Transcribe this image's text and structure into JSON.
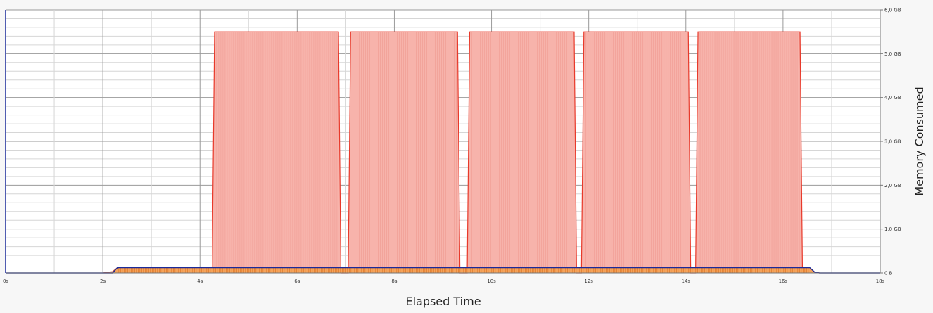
{
  "chart_data": {
    "type": "area",
    "title": "",
    "xlabel": "Elapsed Time",
    "ylabel": "Memory Consumed",
    "x_unit": "s",
    "y_unit": "GB",
    "xlim": [
      0,
      18
    ],
    "ylim": [
      0,
      6
    ],
    "x_ticks": [
      "0s",
      "2s",
      "4s",
      "6s",
      "8s",
      "10s",
      "12s",
      "14s",
      "16s",
      "18s"
    ],
    "y_ticks": [
      "0 B",
      "1,0 GB",
      "2,0 GB",
      "3,0 GB",
      "4,0 GB",
      "5,0 GB",
      "6,0 GB"
    ],
    "y_axis_position": "right",
    "grid": true,
    "legend": "none",
    "series": [
      {
        "color": "#e8392a",
        "fill": "#f7b3ab",
        "points": [
          [
            4.25,
            0
          ],
          [
            4.3,
            5.5
          ],
          [
            6.85,
            5.5
          ],
          [
            6.9,
            0
          ],
          [
            7.05,
            0
          ],
          [
            7.1,
            5.5
          ],
          [
            9.3,
            5.5
          ],
          [
            9.35,
            0
          ],
          [
            9.5,
            0
          ],
          [
            9.55,
            5.5
          ],
          [
            11.7,
            5.5
          ],
          [
            11.75,
            0
          ],
          [
            11.85,
            0
          ],
          [
            11.9,
            5.5
          ],
          [
            14.05,
            5.5
          ],
          [
            14.1,
            0
          ],
          [
            14.2,
            0
          ],
          [
            14.25,
            5.5
          ],
          [
            16.35,
            5.5
          ],
          [
            16.4,
            0
          ]
        ]
      },
      {
        "color": "#d9572b",
        "fill": "#f5a35a",
        "points": [
          [
            2.0,
            0
          ],
          [
            2.2,
            0.03
          ],
          [
            2.3,
            0.12
          ],
          [
            16.55,
            0.12
          ],
          [
            16.65,
            0.02
          ],
          [
            16.75,
            0
          ]
        ]
      },
      {
        "color": "#1a2a9a",
        "fill": "none",
        "points": [
          [
            0,
            0
          ],
          [
            2.2,
            0
          ],
          [
            2.3,
            0.12
          ],
          [
            16.55,
            0.12
          ],
          [
            16.65,
            0.02
          ],
          [
            16.75,
            0
          ],
          [
            18,
            0
          ]
        ]
      }
    ]
  }
}
